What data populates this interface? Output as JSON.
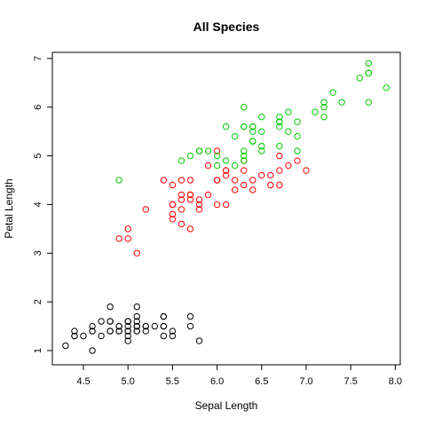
{
  "chart_data": {
    "type": "scatter",
    "title": "All Species",
    "xlabel": "Sepal Length",
    "ylabel": "Petal Length",
    "xlim": [
      4.2,
      8.0
    ],
    "ylim": [
      0.9,
      7.0
    ],
    "x_ticks": [
      4.5,
      5.0,
      5.5,
      6.0,
      6.5,
      7.0,
      7.5,
      8.0
    ],
    "y_ticks": [
      1,
      2,
      3,
      4,
      5,
      6,
      7
    ],
    "x_tick_labels": [
      "4.5",
      "5.0",
      "5.5",
      "6.0",
      "6.5",
      "7.0",
      "7.5",
      "8.0"
    ],
    "y_tick_labels": [
      "1",
      "2",
      "3",
      "4",
      "5",
      "6",
      "7"
    ],
    "grid": false,
    "legend": null,
    "series": [
      {
        "color": "#000000",
        "x": [
          5.1,
          4.9,
          4.7,
          4.6,
          5.0,
          5.4,
          4.6,
          5.0,
          4.4,
          4.9,
          5.4,
          4.8,
          4.8,
          4.3,
          5.8,
          5.7,
          5.4,
          5.1,
          5.7,
          5.1,
          5.4,
          5.1,
          4.6,
          5.1,
          4.8,
          5.0,
          5.0,
          5.2,
          5.2,
          4.7,
          4.8,
          5.4,
          5.2,
          5.5,
          4.9,
          5.0,
          5.5,
          4.9,
          4.4,
          5.1,
          5.0,
          4.5,
          4.4,
          5.0,
          5.1,
          4.8,
          5.1,
          4.6,
          5.3,
          5.0
        ],
        "y": [
          1.4,
          1.4,
          1.3,
          1.5,
          1.4,
          1.7,
          1.4,
          1.5,
          1.4,
          1.5,
          1.5,
          1.6,
          1.4,
          1.1,
          1.2,
          1.5,
          1.3,
          1.4,
          1.7,
          1.5,
          1.7,
          1.5,
          1.0,
          1.7,
          1.9,
          1.6,
          1.6,
          1.5,
          1.4,
          1.6,
          1.6,
          1.5,
          1.5,
          1.4,
          1.5,
          1.2,
          1.3,
          1.4,
          1.3,
          1.5,
          1.3,
          1.3,
          1.3,
          1.6,
          1.9,
          1.4,
          1.6,
          1.4,
          1.5,
          1.4
        ]
      },
      {
        "color": "#ff0000",
        "x": [
          7.0,
          6.4,
          6.9,
          5.5,
          6.5,
          5.7,
          6.3,
          4.9,
          6.6,
          5.2,
          5.0,
          5.9,
          6.0,
          6.1,
          5.6,
          6.7,
          5.6,
          5.8,
          6.2,
          5.6,
          5.9,
          6.1,
          6.3,
          6.1,
          6.4,
          6.6,
          6.8,
          6.7,
          6.0,
          5.7,
          5.5,
          5.5,
          5.8,
          6.0,
          5.4,
          6.0,
          6.7,
          6.3,
          5.6,
          5.5,
          5.5,
          6.1,
          5.8,
          5.0,
          5.6,
          5.7,
          5.7,
          6.2,
          5.1,
          5.7
        ],
        "y": [
          4.7,
          4.5,
          4.9,
          4.0,
          4.6,
          4.5,
          4.7,
          3.3,
          4.6,
          3.9,
          3.5,
          4.2,
          4.0,
          4.7,
          3.6,
          4.4,
          4.5,
          4.1,
          4.5,
          3.9,
          4.8,
          4.0,
          4.9,
          4.7,
          4.3,
          4.4,
          4.8,
          5.0,
          4.5,
          3.5,
          3.8,
          3.7,
          3.9,
          5.1,
          4.5,
          4.5,
          4.7,
          4.4,
          4.1,
          4.0,
          4.4,
          4.6,
          4.0,
          3.3,
          4.2,
          4.2,
          4.2,
          4.3,
          3.0,
          4.1
        ]
      },
      {
        "color": "#00cd00",
        "x": [
          6.3,
          5.8,
          7.1,
          6.3,
          6.5,
          7.6,
          4.9,
          7.3,
          6.7,
          7.2,
          6.5,
          6.4,
          6.8,
          5.7,
          5.8,
          6.4,
          6.5,
          7.7,
          7.7,
          6.0,
          6.9,
          5.6,
          7.7,
          6.3,
          6.7,
          7.2,
          6.2,
          6.1,
          6.4,
          7.2,
          7.4,
          7.9,
          6.4,
          6.3,
          6.1,
          7.7,
          6.3,
          6.4,
          6.0,
          6.9,
          6.7,
          6.9,
          5.8,
          6.8,
          6.7,
          6.7,
          6.3,
          6.5,
          6.2,
          5.9
        ],
        "y": [
          6.0,
          5.1,
          5.9,
          5.6,
          5.8,
          6.6,
          4.5,
          6.3,
          5.8,
          6.1,
          5.1,
          5.3,
          5.5,
          5.0,
          5.1,
          5.3,
          5.5,
          6.7,
          6.9,
          5.0,
          5.7,
          4.9,
          6.7,
          4.9,
          5.7,
          6.0,
          4.8,
          4.9,
          5.6,
          5.8,
          6.1,
          6.4,
          5.6,
          5.1,
          5.6,
          6.1,
          5.6,
          5.5,
          4.8,
          5.4,
          5.6,
          5.1,
          5.1,
          5.9,
          5.7,
          5.2,
          5.0,
          5.2,
          5.4,
          5.1
        ]
      }
    ]
  }
}
